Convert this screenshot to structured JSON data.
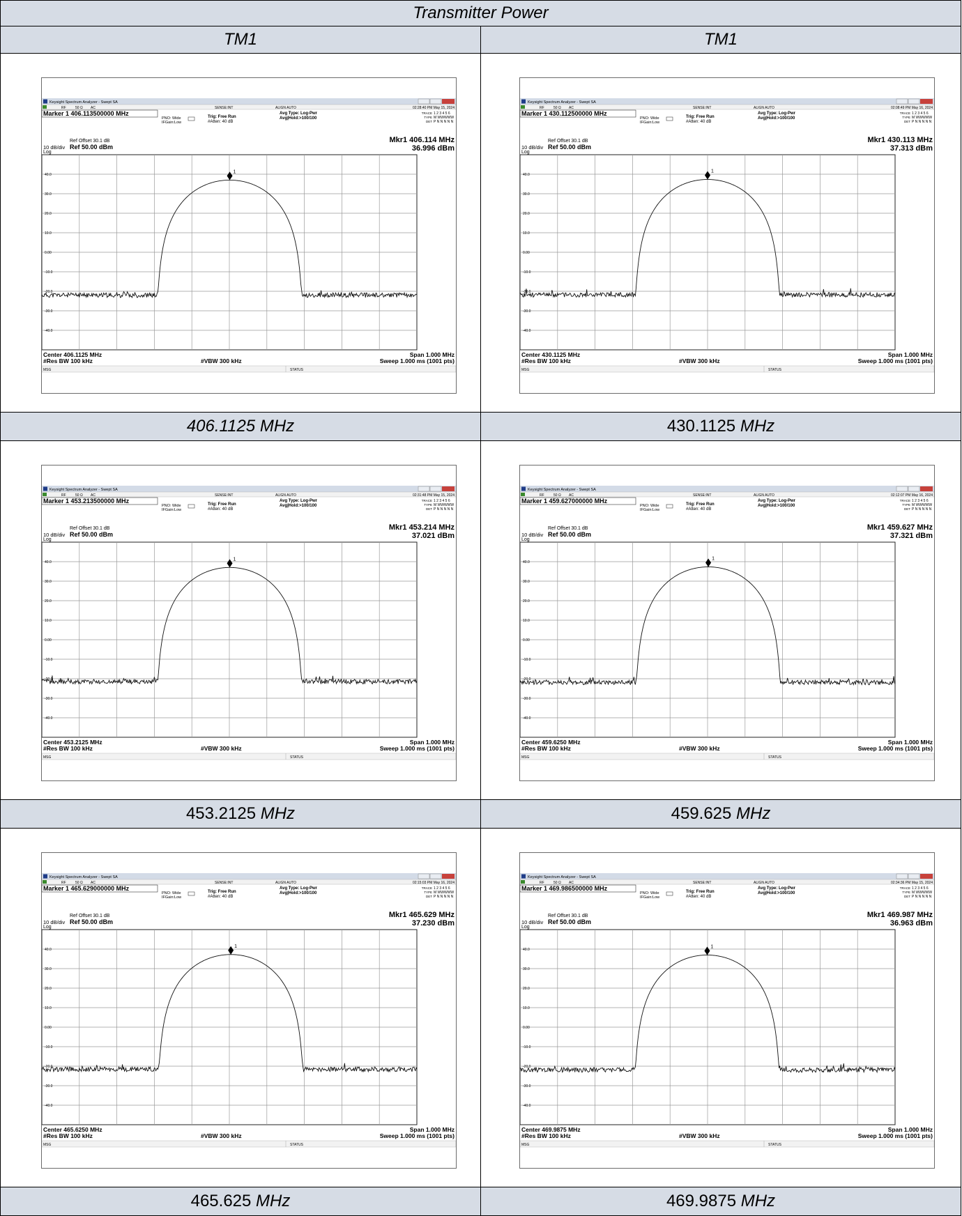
{
  "table": {
    "title": "Transmitter Power",
    "columns": [
      "TM1",
      "TM1"
    ],
    "captions": [
      {
        "num": "406.1125",
        "unit": "MHz",
        "num_italic": true
      },
      {
        "num": "430.1125",
        "unit": "MHz",
        "num_italic": false
      },
      {
        "num": "453.2125",
        "unit": "MHz",
        "num_italic": false
      },
      {
        "num": "459.625",
        "unit": "MHz",
        "num_italic": false
      },
      {
        "num": "465.625",
        "unit": "MHz",
        "num_italic": false
      },
      {
        "num": "469.9875",
        "unit": "MHz",
        "num_italic": false
      }
    ]
  },
  "analyzer_common": {
    "window_title": "Keysight Spectrum Analyzer - Swept SA",
    "rf": "RF",
    "imp": "50 Ω",
    "ac": "AC",
    "sense": "SENSE:INT",
    "align": "ALIGN AUTO",
    "pno": "PNO: Wide",
    "ifgain": "IFGain:Low",
    "trig": "Trig: Free Run",
    "atten": "#Atten: 40 dB",
    "avg_type": "Avg Type: Log-Pwr",
    "avg_hold": "Avg|Hold:>100/100",
    "trace_lbl": "TRACE",
    "trace_val": "1 2 3 4 5 6",
    "type_lbl": "TYPE",
    "type_val": "M WWWWW",
    "det_lbl": "DET",
    "det_val": "P N N N N N",
    "ref_offset": "Ref Offset 30.1 dB",
    "scale": "10 dB/div",
    "ref": "Ref 50.00 dBm",
    "log": "Log",
    "res_bw": "#Res BW 100 kHz",
    "vbw": "#VBW 300 kHz",
    "span": "Span 1.000 MHz",
    "sweep": "Sweep  1.000 ms (1001 pts)",
    "msg": "MSG",
    "status": "STATUS",
    "marker_label": "1"
  },
  "chart_data": [
    {
      "type": "line",
      "marker_title": "Marker 1 406.113500000 MHz",
      "mkr_freq": "Mkr1 406.114 MHz",
      "mkr_level": "36.996 dBm",
      "center": "Center 406.1125 MHz",
      "timestamp": "02:28:40 PM May 15, 2024",
      "marker_x": 0.001,
      "peak_dbm": 36.996,
      "noise_dbm": -22.0,
      "ylim": [
        -50,
        50
      ],
      "xlim": [
        -0.5,
        0.5
      ],
      "yticks": [
        "40.0",
        "30.0",
        "20.0",
        "10.0",
        "0.00",
        "-10.0",
        "-20.0",
        "-30.0",
        "-40.0"
      ],
      "seed": 11
    },
    {
      "type": "line",
      "marker_title": "Marker 1 430.112500000 MHz",
      "mkr_freq": "Mkr1 430.113 MHz",
      "mkr_level": "37.313 dBm",
      "center": "Center 430.1125 MHz",
      "timestamp": "02:08:49 PM May 16, 2024",
      "marker_x": 0.0,
      "peak_dbm": 37.313,
      "noise_dbm": -21.8,
      "ylim": [
        -50,
        50
      ],
      "xlim": [
        -0.5,
        0.5
      ],
      "yticks": [
        "40.0",
        "30.0",
        "20.0",
        "10.0",
        "0.00",
        "-10.0",
        "-20.0",
        "-30.0",
        "-40.0"
      ],
      "seed": 23
    },
    {
      "type": "line",
      "marker_title": "Marker 1 453.213500000 MHz",
      "mkr_freq": "Mkr1 453.214 MHz",
      "mkr_level": "37.021 dBm",
      "center": "Center 453.2125 MHz",
      "timestamp": "02:31:48 PM May 15, 2024",
      "marker_x": 0.001,
      "peak_dbm": 37.021,
      "noise_dbm": -21.5,
      "ylim": [
        -50,
        50
      ],
      "xlim": [
        -0.5,
        0.5
      ],
      "yticks": [
        "40.0",
        "30.0",
        "20.0",
        "10.0",
        "0.00",
        "-10.0",
        "-20.0",
        "-30.0",
        "-40.0"
      ],
      "seed": 37
    },
    {
      "type": "line",
      "marker_title": "Marker 1 459.627000000 MHz",
      "mkr_freq": "Mkr1 459.627 MHz",
      "mkr_level": "37.321 dBm",
      "center": "Center 459.6250 MHz",
      "timestamp": "02:12:07 PM May 16, 2024",
      "marker_x": 0.002,
      "peak_dbm": 37.321,
      "noise_dbm": -21.9,
      "ylim": [
        -50,
        50
      ],
      "xlim": [
        -0.5,
        0.5
      ],
      "yticks": [
        "40.0",
        "30.0",
        "20.0",
        "10.0",
        "0.00",
        "-10.0",
        "-20.0",
        "-30.0",
        "-40.0"
      ],
      "seed": 41
    },
    {
      "type": "line",
      "marker_title": "Marker 1 465.629000000 MHz",
      "mkr_freq": "Mkr1 465.629 MHz",
      "mkr_level": "37.230 dBm",
      "center": "Center 465.6250 MHz",
      "timestamp": "02:15:03 PM May 16, 2024",
      "marker_x": 0.004,
      "peak_dbm": 37.23,
      "noise_dbm": -21.6,
      "ylim": [
        -50,
        50
      ],
      "xlim": [
        -0.5,
        0.5
      ],
      "yticks": [
        "40.0",
        "30.0",
        "20.0",
        "10.0",
        "0.00",
        "-10.0",
        "-20.0",
        "-30.0",
        "-40.0"
      ],
      "seed": 53
    },
    {
      "type": "line",
      "marker_title": "Marker 1 469.986500000 MHz",
      "mkr_freq": "Mkr1 469.987 MHz",
      "mkr_level": "36.963 dBm",
      "center": "Center 469.9875 MHz",
      "timestamp": "02:34:36 PM May 15, 2024",
      "marker_x": -0.001,
      "peak_dbm": 36.963,
      "noise_dbm": -21.9,
      "ylim": [
        -50,
        50
      ],
      "xlim": [
        -0.5,
        0.5
      ],
      "yticks": [
        "40.0",
        "30.0",
        "20.0",
        "10.0",
        "0.00",
        "-10.0",
        "-20.0",
        "-30.0",
        "-40.0"
      ],
      "seed": 67
    }
  ]
}
